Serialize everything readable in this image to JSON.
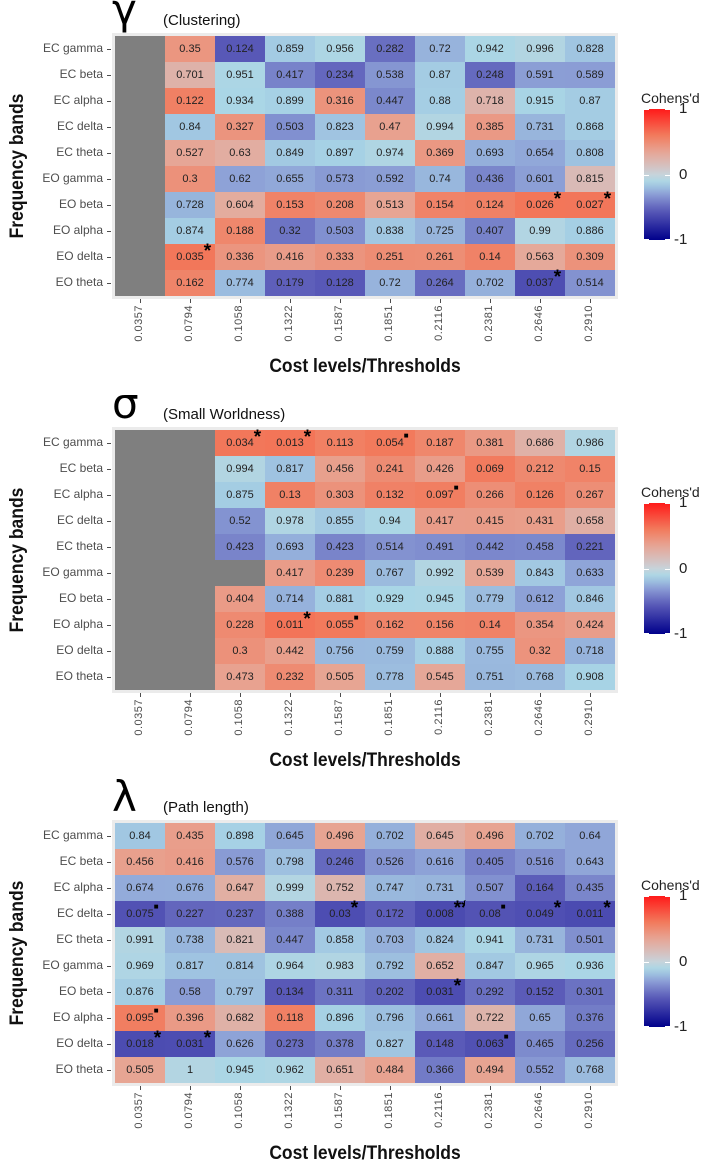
{
  "chart_data": [
    {
      "type": "heatmap",
      "title_symbol": "γ",
      "title": "(Clustering)",
      "xlabel": "Cost levels/Thresholds",
      "ylabel": "Frequency bands",
      "legend_title": "Cohens'd",
      "legend_ticks": [
        "1",
        "0",
        "-1"
      ],
      "legend_range": [
        -1,
        1
      ],
      "legend_placement": "right",
      "x": [
        "0.0357",
        "0.0794",
        "0.1058",
        "0.1322",
        "0.1587",
        "0.1851",
        "0.2116",
        "0.2381",
        "0.2646",
        "0.2910"
      ],
      "y": [
        "EC gamma",
        "EC beta",
        "EC alpha",
        "EC delta",
        "EC theta",
        "EO gamma",
        "EO beta",
        "EO alpha",
        "EO delta",
        "EO theta"
      ],
      "p": [
        [
          null,
          "0.35",
          "0.124",
          "0.859",
          "0.956",
          "0.282",
          "0.72",
          "0.942",
          "0.996",
          "0.828"
        ],
        [
          null,
          "0.701",
          "0.951",
          "0.417",
          "0.234",
          "0.538",
          "0.87",
          "0.248",
          "0.591",
          "0.589"
        ],
        [
          null,
          "0.122",
          "0.934",
          "0.899",
          "0.316",
          "0.447",
          "0.88",
          "0.718",
          "0.915",
          "0.87"
        ],
        [
          null,
          "0.84",
          "0.327",
          "0.503",
          "0.823",
          "0.47",
          "0.994",
          "0.385",
          "0.731",
          "0.868"
        ],
        [
          null,
          "0.527",
          "0.63",
          "0.849",
          "0.897",
          "0.974",
          "0.369",
          "0.693",
          "0.654",
          "0.808"
        ],
        [
          null,
          "0.3",
          "0.62",
          "0.655",
          "0.573",
          "0.592",
          "0.74",
          "0.436",
          "0.601",
          "0.815"
        ],
        [
          null,
          "0.728",
          "0.604",
          "0.153",
          "0.208",
          "0.513",
          "0.154",
          "0.124",
          "0.026",
          "0.027"
        ],
        [
          null,
          "0.874",
          "0.188",
          "0.32",
          "0.503",
          "0.838",
          "0.725",
          "0.407",
          "0.99",
          "0.886"
        ],
        [
          null,
          "0.035",
          "0.336",
          "0.416",
          "0.333",
          "0.251",
          "0.261",
          "0.14",
          "0.563",
          "0.309"
        ],
        [
          null,
          "0.162",
          "0.774",
          "0.179",
          "0.128",
          "0.72",
          "0.264",
          "0.702",
          "0.037",
          "0.514"
        ]
      ],
      "sig": [
        [
          "",
          "",
          "",
          "",
          "",
          "",
          "",
          "",
          "",
          ""
        ],
        [
          "",
          "",
          "",
          "",
          "",
          "",
          "",
          "",
          "",
          ""
        ],
        [
          "",
          "",
          "",
          "",
          "",
          "",
          "",
          "",
          "",
          ""
        ],
        [
          "",
          "",
          "",
          "",
          "",
          "",
          "",
          "",
          "",
          ""
        ],
        [
          "",
          "",
          "",
          "",
          "",
          "",
          "",
          "",
          "",
          ""
        ],
        [
          "",
          "",
          "",
          "",
          "",
          "",
          "",
          "",
          "",
          ""
        ],
        [
          "",
          "",
          "",
          "",
          "",
          "",
          "",
          "",
          "*",
          "*"
        ],
        [
          "",
          "",
          "",
          "",
          "",
          "",
          "",
          "",
          "",
          ""
        ],
        [
          "",
          "*",
          "",
          "",
          "",
          "",
          "",
          "",
          "",
          ""
        ],
        [
          "",
          "",
          "",
          "",
          "",
          "",
          "",
          "",
          "*",
          ""
        ]
      ],
      "effect_direction": [
        [
          0,
          1,
          -1,
          -1,
          -1,
          -1,
          -1,
          -1,
          -1,
          -1
        ],
        [
          0,
          1,
          -1,
          -1,
          -1,
          -1,
          -1,
          -1,
          -1,
          -1
        ],
        [
          0,
          1,
          -1,
          -1,
          1,
          -1,
          -1,
          1,
          -1,
          -1
        ],
        [
          0,
          -1,
          1,
          -1,
          -1,
          1,
          -1,
          1,
          -1,
          -1
        ],
        [
          0,
          1,
          1,
          -1,
          -1,
          -1,
          1,
          -1,
          -1,
          -1
        ],
        [
          0,
          1,
          -1,
          -1,
          -1,
          -1,
          -1,
          -1,
          -1,
          1
        ],
        [
          0,
          -1,
          1,
          1,
          1,
          1,
          1,
          1,
          1,
          1
        ],
        [
          0,
          -1,
          1,
          -1,
          -1,
          -1,
          -1,
          -1,
          -1,
          -1
        ],
        [
          0,
          1,
          1,
          1,
          1,
          1,
          1,
          1,
          1,
          1
        ],
        [
          0,
          1,
          -1,
          -1,
          -1,
          -1,
          -1,
          -1,
          -1,
          -1
        ]
      ]
    },
    {
      "type": "heatmap",
      "title_symbol": "σ",
      "title": "(Small Worldness)",
      "xlabel": "Cost levels/Thresholds",
      "ylabel": "Frequency bands",
      "legend_title": "Cohens'd",
      "legend_ticks": [
        "1",
        "0",
        "-1"
      ],
      "legend_range": [
        -1,
        1
      ],
      "legend_placement": "right",
      "x": [
        "0.0357",
        "0.0794",
        "0.1058",
        "0.1322",
        "0.1587",
        "0.1851",
        "0.2116",
        "0.2381",
        "0.2646",
        "0.2910"
      ],
      "y": [
        "EC gamma",
        "EC beta",
        "EC alpha",
        "EC delta",
        "EC theta",
        "EO gamma",
        "EO beta",
        "EO alpha",
        "EO delta",
        "EO theta"
      ],
      "p": [
        [
          null,
          null,
          "0.034",
          "0.013",
          "0.113",
          "0.054",
          "0.187",
          "0.381",
          "0.686",
          "0.986"
        ],
        [
          null,
          null,
          "0.994",
          "0.817",
          "0.456",
          "0.241",
          "0.426",
          "0.069",
          "0.212",
          "0.15"
        ],
        [
          null,
          null,
          "0.875",
          "0.13",
          "0.303",
          "0.132",
          "0.097",
          "0.266",
          "0.126",
          "0.267"
        ],
        [
          null,
          null,
          "0.52",
          "0.978",
          "0.855",
          "0.94",
          "0.417",
          "0.415",
          "0.431",
          "0.658"
        ],
        [
          null,
          null,
          "0.423",
          "0.693",
          "0.423",
          "0.514",
          "0.491",
          "0.442",
          "0.458",
          "0.221"
        ],
        [
          null,
          null,
          null,
          "0.417",
          "0.239",
          "0.767",
          "0.992",
          "0.539",
          "0.843",
          "0.633"
        ],
        [
          null,
          null,
          "0.404",
          "0.714",
          "0.881",
          "0.929",
          "0.945",
          "0.779",
          "0.612",
          "0.846"
        ],
        [
          null,
          null,
          "0.228",
          "0.011",
          "0.055",
          "0.162",
          "0.156",
          "0.14",
          "0.354",
          "0.424"
        ],
        [
          null,
          null,
          "0.3",
          "0.442",
          "0.756",
          "0.759",
          "0.888",
          "0.755",
          "0.32",
          "0.718"
        ],
        [
          null,
          null,
          "0.473",
          "0.232",
          "0.505",
          "0.778",
          "0.545",
          "0.751",
          "0.768",
          "0.908"
        ]
      ],
      "sig": [
        [
          "",
          "",
          "*",
          "*",
          "",
          "■",
          "",
          "",
          "",
          ""
        ],
        [
          "",
          "",
          "",
          "",
          "",
          "",
          "",
          "",
          "",
          ""
        ],
        [
          "",
          "",
          "",
          "",
          "",
          "",
          "■",
          "",
          "",
          ""
        ],
        [
          "",
          "",
          "",
          "",
          "",
          "",
          "",
          "",
          "",
          ""
        ],
        [
          "",
          "",
          "",
          "",
          "",
          "",
          "",
          "",
          "",
          ""
        ],
        [
          "",
          "",
          "",
          "",
          "",
          "",
          "",
          "",
          "",
          ""
        ],
        [
          "",
          "",
          "",
          "",
          "",
          "",
          "",
          "",
          "",
          ""
        ],
        [
          "",
          "",
          "",
          "*",
          "■",
          "",
          "",
          "",
          "",
          ""
        ],
        [
          "",
          "",
          "",
          "",
          "",
          "",
          "",
          "",
          "",
          ""
        ],
        [
          "",
          "",
          "",
          "",
          "",
          "",
          "",
          "",
          "",
          ""
        ]
      ],
      "effect_direction": [
        [
          0,
          0,
          1,
          1,
          1,
          1,
          1,
          1,
          1,
          -1
        ],
        [
          0,
          0,
          -1,
          -1,
          1,
          1,
          1,
          1,
          1,
          1
        ],
        [
          0,
          0,
          -1,
          1,
          1,
          1,
          1,
          1,
          1,
          1
        ],
        [
          0,
          0,
          -1,
          -1,
          -1,
          -1,
          1,
          1,
          1,
          1
        ],
        [
          0,
          0,
          -1,
          -1,
          -1,
          -1,
          -1,
          -1,
          -1,
          -1
        ],
        [
          0,
          0,
          0,
          1,
          1,
          -1,
          -1,
          1,
          -1,
          -1
        ],
        [
          0,
          0,
          1,
          -1,
          -1,
          -1,
          -1,
          -1,
          -1,
          -1
        ],
        [
          0,
          0,
          1,
          1,
          1,
          1,
          1,
          1,
          1,
          1
        ],
        [
          0,
          0,
          1,
          1,
          -1,
          -1,
          -1,
          -1,
          1,
          -1
        ],
        [
          0,
          0,
          1,
          1,
          1,
          -1,
          1,
          -1,
          -1,
          -1
        ]
      ]
    },
    {
      "type": "heatmap",
      "title_symbol": "λ",
      "title": "(Path length)",
      "xlabel": "Cost levels/Thresholds",
      "ylabel": "Frequency bands",
      "legend_title": "Cohens'd",
      "legend_ticks": [
        "1",
        "0",
        "-1"
      ],
      "legend_range": [
        -1,
        1
      ],
      "legend_placement": "right",
      "x": [
        "0.0357",
        "0.0794",
        "0.1058",
        "0.1322",
        "0.1587",
        "0.1851",
        "0.2116",
        "0.2381",
        "0.2646",
        "0.2910"
      ],
      "y": [
        "EC gamma",
        "EC beta",
        "EC alpha",
        "EC delta",
        "EC theta",
        "EO gamma",
        "EO beta",
        "EO alpha",
        "EO delta",
        "EO theta"
      ],
      "p": [
        [
          "0.84",
          "0.435",
          "0.898",
          "0.645",
          "0.496",
          "0.702",
          "0.645",
          "0.496",
          "0.702",
          "0.64"
        ],
        [
          "0.456",
          "0.416",
          "0.576",
          "0.798",
          "0.246",
          "0.526",
          "0.616",
          "0.405",
          "0.516",
          "0.643"
        ],
        [
          "0.674",
          "0.676",
          "0.647",
          "0.999",
          "0.752",
          "0.747",
          "0.731",
          "0.507",
          "0.164",
          "0.435"
        ],
        [
          "0.075",
          "0.227",
          "0.237",
          "0.388",
          "0.03",
          "0.172",
          "0.008",
          "0.08",
          "0.049",
          "0.011"
        ],
        [
          "0.991",
          "0.738",
          "0.821",
          "0.447",
          "0.858",
          "0.703",
          "0.824",
          "0.941",
          "0.731",
          "0.501"
        ],
        [
          "0.969",
          "0.817",
          "0.814",
          "0.964",
          "0.983",
          "0.792",
          "0.652",
          "0.847",
          "0.965",
          "0.936"
        ],
        [
          "0.876",
          "0.58",
          "0.797",
          "0.134",
          "0.311",
          "0.202",
          "0.031",
          "0.292",
          "0.152",
          "0.301"
        ],
        [
          "0.095",
          "0.396",
          "0.682",
          "0.118",
          "0.896",
          "0.796",
          "0.661",
          "0.722",
          "0.65",
          "0.376"
        ],
        [
          "0.018",
          "0.031",
          "0.626",
          "0.273",
          "0.378",
          "0.827",
          "0.148",
          "0.063",
          "0.465",
          "0.256"
        ],
        [
          "0.505",
          "1",
          "0.945",
          "0.962",
          "0.651",
          "0.484",
          "0.366",
          "0.494",
          "0.552",
          "0.768"
        ]
      ],
      "sig": [
        [
          "",
          "",
          "",
          "",
          "",
          "",
          "",
          "",
          "",
          ""
        ],
        [
          "",
          "",
          "",
          "",
          "",
          "",
          "",
          "",
          "",
          ""
        ],
        [
          "",
          "",
          "",
          "",
          "",
          "",
          "",
          "",
          "",
          ""
        ],
        [
          "■",
          "",
          "",
          "",
          "*",
          "",
          "**",
          "■",
          "*",
          "*"
        ],
        [
          "",
          "",
          "",
          "",
          "",
          "",
          "",
          "",
          "",
          ""
        ],
        [
          "",
          "",
          "",
          "",
          "",
          "",
          "",
          "",
          "",
          ""
        ],
        [
          "",
          "",
          "",
          "",
          "",
          "",
          "*",
          "",
          "",
          ""
        ],
        [
          "■",
          "",
          "",
          "",
          "",
          "",
          "",
          "",
          "",
          ""
        ],
        [
          "*",
          "*",
          "",
          "",
          "",
          "",
          "",
          "■",
          "",
          ""
        ],
        [
          "",
          "",
          "",
          "",
          "",
          "",
          "",
          "",
          "",
          ""
        ]
      ],
      "effect_direction": [
        [
          -1,
          1,
          -1,
          -1,
          1,
          -1,
          1,
          1,
          -1,
          -1
        ],
        [
          1,
          1,
          -1,
          -1,
          -1,
          -1,
          -1,
          -1,
          -1,
          -1
        ],
        [
          -1,
          -1,
          1,
          -1,
          1,
          -1,
          -1,
          -1,
          -1,
          -1
        ],
        [
          -1,
          -1,
          -1,
          -1,
          -1,
          -1,
          -1,
          -1,
          -1,
          -1
        ],
        [
          -1,
          -1,
          1,
          -1,
          -1,
          -1,
          -1,
          -1,
          -1,
          -1
        ],
        [
          -1,
          -1,
          -1,
          -1,
          -1,
          -1,
          1,
          -1,
          -1,
          -1
        ],
        [
          -1,
          -1,
          -1,
          -1,
          -1,
          -1,
          -1,
          -1,
          -1,
          -1
        ],
        [
          1,
          1,
          1,
          1,
          -1,
          -1,
          -1,
          1,
          -1,
          -1
        ],
        [
          -1,
          -1,
          -1,
          -1,
          -1,
          -1,
          -1,
          -1,
          -1,
          -1
        ],
        [
          1,
          -1,
          -1,
          -1,
          1,
          1,
          -1,
          1,
          -1,
          -1
        ]
      ]
    }
  ]
}
